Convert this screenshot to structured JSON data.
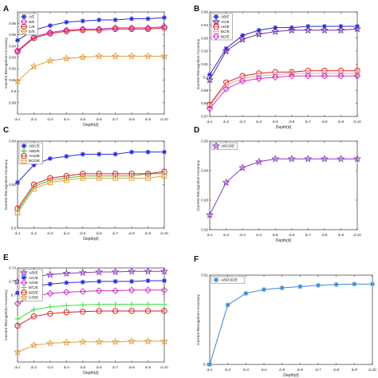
{
  "figure": {
    "x_tick_labels": [
      "d=1",
      "d=2",
      "d=3",
      "d=4",
      "d=5",
      "d=6",
      "d=7",
      "d=8",
      "d=9",
      "d=10"
    ],
    "xlabel": "Depth(d)",
    "ylabel": "Current Recognition Accuracy"
  },
  "chart_data": [
    {
      "panel": "A",
      "type": "line",
      "x": [
        1,
        2,
        3,
        4,
        5,
        6,
        7,
        8,
        9,
        10
      ],
      "ylim": [
        0.88,
        0.97
      ],
      "y_ticks": [
        0.96,
        0.95,
        0.94,
        0.93,
        0.92,
        0.91,
        0.9,
        0.89
      ],
      "legend_placement": "top-left",
      "series": [
        {
          "name": "A/E",
          "marker": "asterisk",
          "color": "#2a2ad6",
          "values": [
            0.945,
            0.954,
            0.958,
            0.961,
            0.962,
            0.963,
            0.963,
            0.964,
            0.964,
            0.965
          ]
        },
        {
          "name": "B/E",
          "marker": "diamond",
          "color": "#cc33cc",
          "values": [
            0.936,
            0.948,
            0.952,
            0.954,
            0.955,
            0.955,
            0.956,
            0.956,
            0.956,
            0.957
          ]
        },
        {
          "name": "C/E",
          "marker": "circle",
          "color": "#d62222",
          "values": [
            0.935,
            0.947,
            0.951,
            0.953,
            0.954,
            0.954,
            0.955,
            0.955,
            0.955,
            0.956
          ]
        },
        {
          "name": "D/E",
          "marker": "star",
          "color": "#e0a040",
          "values": [
            0.909,
            0.922,
            0.927,
            0.929,
            0.93,
            0.931,
            0.931,
            0.931,
            0.931,
            0.931
          ]
        }
      ]
    },
    {
      "panel": "B",
      "type": "line",
      "x": [
        1,
        2,
        3,
        4,
        5,
        6,
        7,
        8,
        9,
        10
      ],
      "ylim": [
        0.87,
        0.95
      ],
      "y_ticks": [
        0.95,
        0.94,
        0.93,
        0.92,
        0.91,
        0.9,
        0.89,
        0.88,
        0.87
      ],
      "legend_placement": "top-left",
      "series": [
        {
          "name": "AB/E",
          "marker": "asterisk",
          "color": "#2a2ad6",
          "values": [
            0.902,
            0.922,
            0.932,
            0.936,
            0.938,
            0.938,
            0.939,
            0.939,
            0.939,
            0.939
          ]
        },
        {
          "name": "AC/E",
          "marker": "star",
          "color": "#6a2a9a",
          "values": [
            0.898,
            0.92,
            0.929,
            0.933,
            0.935,
            0.936,
            0.936,
            0.936,
            0.936,
            0.937
          ]
        },
        {
          "name": "AD/E",
          "marker": "circle",
          "color": "#d62222",
          "values": [
            0.879,
            0.896,
            0.901,
            0.903,
            0.904,
            0.904,
            0.905,
            0.905,
            0.905,
            0.905
          ]
        },
        {
          "name": "BC/E",
          "marker": "square",
          "color": "#f0a0a0",
          "values": [
            0.878,
            0.894,
            0.899,
            0.901,
            0.902,
            0.903,
            0.903,
            0.903,
            0.903,
            0.903
          ]
        },
        {
          "name": "BD/E",
          "marker": "diamond",
          "color": "#cc33cc",
          "values": [
            0.876,
            0.891,
            0.897,
            0.899,
            0.9,
            0.901,
            0.901,
            0.901,
            0.901,
            0.901
          ]
        }
      ]
    },
    {
      "panel": "C",
      "type": "line",
      "x": [
        1,
        2,
        3,
        4,
        5,
        6,
        7,
        8,
        9,
        10
      ],
      "ylim": [
        0.9,
        0.94
      ],
      "y_ticks": [
        0.94,
        0.92,
        0.9
      ],
      "legend_placement": "top-left",
      "series": [
        {
          "name": "ABC/E",
          "marker": "asterisk",
          "color": "#2a2ad6",
          "values": [
            0.921,
            0.929,
            0.932,
            0.933,
            0.934,
            0.934,
            0.934,
            0.935,
            0.935,
            0.935
          ]
        },
        {
          "name": "ABD/E",
          "marker": "plus",
          "color": "#44bb44",
          "values": [
            0.908,
            0.919,
            0.922,
            0.923,
            0.924,
            0.924,
            0.924,
            0.924,
            0.925,
            0.925
          ]
        },
        {
          "name": "ACD/E",
          "marker": "circle",
          "color": "#d62222",
          "values": [
            0.909,
            0.92,
            0.923,
            0.924,
            0.925,
            0.925,
            0.925,
            0.925,
            0.925,
            0.926
          ]
        },
        {
          "name": "BCD/E",
          "marker": "square",
          "color": "#e0a040",
          "values": [
            0.907,
            0.918,
            0.921,
            0.922,
            0.923,
            0.923,
            0.923,
            0.923,
            0.923,
            0.924
          ]
        }
      ]
    },
    {
      "panel": "D",
      "type": "line",
      "x": [
        1,
        2,
        3,
        4,
        5,
        6,
        7,
        8,
        9,
        10
      ],
      "ylim": [
        0.92,
        0.95
      ],
      "y_ticks": [
        0.95,
        0.94,
        0.93,
        0.92
      ],
      "legend_placement": "top-left",
      "series": [
        {
          "name": "ABCD/E",
          "marker": "star",
          "color": "#8a3ab4",
          "values": [
            0.925,
            0.936,
            0.941,
            0.943,
            0.944,
            0.944,
            0.944,
            0.944,
            0.944,
            0.944
          ]
        }
      ]
    },
    {
      "panel": "E",
      "type": "line",
      "x": [
        1,
        2,
        3,
        4,
        5,
        6,
        7,
        8,
        9,
        10
      ],
      "ylim": [
        0.6,
        0.74
      ],
      "y_ticks": [
        0.74,
        0.72,
        0.7
      ],
      "legend_placement": "top-left",
      "series": [
        {
          "name": "A/B/E",
          "marker": "star",
          "color": "#8a3ab4",
          "values": [
            0.72,
            0.727,
            0.73,
            0.732,
            0.733,
            0.734,
            0.734,
            0.735,
            0.735,
            0.735
          ]
        },
        {
          "name": "A/C/E",
          "marker": "asterisk",
          "color": "#2a2ad6",
          "values": [
            0.703,
            0.713,
            0.716,
            0.718,
            0.719,
            0.72,
            0.72,
            0.72,
            0.721,
            0.721
          ]
        },
        {
          "name": "A/D/E",
          "marker": "diamond",
          "color": "#cc33cc",
          "values": [
            0.687,
            0.698,
            0.702,
            0.704,
            0.705,
            0.706,
            0.706,
            0.707,
            0.707,
            0.707
          ]
        },
        {
          "name": "B/C/E",
          "marker": "plus",
          "color": "#44dd44",
          "values": [
            0.664,
            0.678,
            0.682,
            0.684,
            0.685,
            0.686,
            0.686,
            0.686,
            0.686,
            0.686
          ]
        },
        {
          "name": "B/D/E",
          "marker": "circle",
          "color": "#d62222",
          "values": [
            0.654,
            0.668,
            0.672,
            0.674,
            0.675,
            0.676,
            0.676,
            0.676,
            0.676,
            0.676
          ]
        },
        {
          "name": "C/D/E",
          "marker": "star",
          "color": "#e0a040",
          "values": [
            0.615,
            0.625,
            0.628,
            0.629,
            0.63,
            0.63,
            0.63,
            0.631,
            0.631,
            0.631
          ]
        }
      ]
    },
    {
      "panel": "F",
      "type": "line",
      "x": [
        1,
        2,
        3,
        4,
        5,
        6,
        7,
        8,
        9,
        10
      ],
      "ylim": [
        0.3,
        0.51
      ],
      "y_ticks": [
        0.51,
        0.3
      ],
      "legend_placement": "top-left",
      "series": [
        {
          "name": "A/B/C/D/E",
          "marker": "asterisk",
          "color": "#3a88d6",
          "values": [
            0.3,
            0.44,
            0.467,
            0.476,
            0.48,
            0.483,
            0.486,
            0.488,
            0.489,
            0.489
          ]
        }
      ]
    }
  ]
}
